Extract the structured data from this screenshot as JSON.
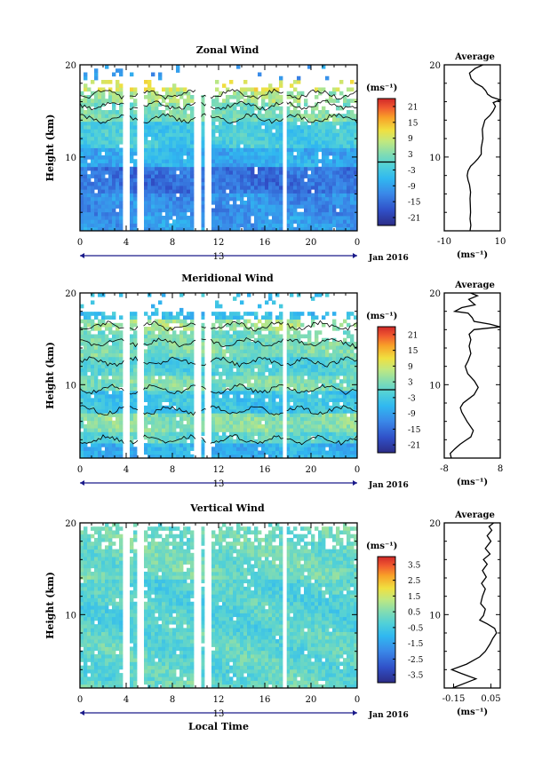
{
  "figure": {
    "date_label": "Jan 2016",
    "day_label": "13",
    "xlabel": "Local Time",
    "x_ticks": [
      "0",
      "4",
      "8",
      "12",
      "16",
      "20",
      "0"
    ]
  },
  "chart_data": [
    {
      "type": "heatmap",
      "title": "Zonal Wind",
      "ylabel": "Height (km)",
      "y_ticks": [
        "10",
        "20"
      ],
      "ylim": [
        2,
        20
      ],
      "xlim": [
        0,
        24
      ],
      "colorbar": {
        "label": "(ms⁻¹)",
        "ticks": [
          "21",
          "15",
          "9",
          "3",
          "-3",
          "-9",
          "-15",
          "-21"
        ],
        "range": [
          -24,
          24
        ],
        "contour_at": 0
      },
      "gaps": [
        [
          3.8,
          4.3
        ],
        [
          5.0,
          5.5
        ],
        [
          10.0,
          10.5
        ],
        [
          10.9,
          11.3
        ],
        [
          17.6,
          17.9
        ]
      ],
      "profile": {
        "title": "Average",
        "ticks": [
          "-10",
          "10"
        ],
        "xlim": [
          -10,
          10
        ],
        "xlabel": "(ms⁻¹)",
        "y_ticks": [
          "10",
          "20"
        ],
        "points": [
          [
            -0.8,
            2.0
          ],
          [
            -0.5,
            2.6
          ],
          [
            -0.8,
            3.3
          ],
          [
            -0.6,
            4.0
          ],
          [
            -0.7,
            4.8
          ],
          [
            -0.8,
            5.5
          ],
          [
            -0.6,
            6.2
          ],
          [
            -1.0,
            7.0
          ],
          [
            -1.5,
            7.5
          ],
          [
            -1.8,
            8.0
          ],
          [
            -1.5,
            8.5
          ],
          [
            -0.6,
            9.0
          ],
          [
            0.8,
            9.4
          ],
          [
            2.0,
            9.8
          ],
          [
            3.2,
            10.3
          ],
          [
            3.2,
            11.0
          ],
          [
            3.8,
            12.0
          ],
          [
            3.6,
            13.0
          ],
          [
            4.5,
            14.0
          ],
          [
            6.3,
            14.5
          ],
          [
            7.5,
            15.0
          ],
          [
            8.3,
            15.5
          ],
          [
            7.5,
            15.9
          ],
          [
            10.0,
            16.2
          ],
          [
            7.0,
            16.5
          ],
          [
            5.5,
            16.8
          ],
          [
            4.8,
            17.2
          ],
          [
            3.6,
            17.6
          ],
          [
            1.2,
            18.0
          ],
          [
            -0.4,
            18.5
          ],
          [
            -1.0,
            19.1
          ],
          [
            1.0,
            19.6
          ],
          [
            3.8,
            20.0
          ]
        ]
      }
    },
    {
      "type": "heatmap",
      "title": "Meridional Wind",
      "ylabel": "Height (km)",
      "y_ticks": [
        "10",
        "20"
      ],
      "ylim": [
        2,
        20
      ],
      "xlim": [
        0,
        24
      ],
      "colorbar": {
        "label": "(ms⁻¹)",
        "ticks": [
          "21",
          "15",
          "9",
          "3",
          "-3",
          "-9",
          "-15",
          "-21"
        ],
        "range": [
          -24,
          24
        ],
        "contour_at": 0
      },
      "gaps": [
        [
          3.8,
          4.3
        ],
        [
          5.0,
          5.5
        ],
        [
          10.0,
          10.5
        ],
        [
          10.9,
          11.3
        ],
        [
          17.6,
          17.9
        ]
      ],
      "profile": {
        "title": "Average",
        "ticks": [
          "-8",
          "8"
        ],
        "xlim": [
          -8,
          8
        ],
        "xlabel": "(ms⁻¹)",
        "y_ticks": [
          "10",
          "20"
        ],
        "points": [
          [
            -6.0,
            2.0
          ],
          [
            -6.3,
            2.5
          ],
          [
            -5.0,
            3.0
          ],
          [
            -3.5,
            3.5
          ],
          [
            -2.0,
            3.9
          ],
          [
            -0.4,
            4.3
          ],
          [
            0.3,
            5.0
          ],
          [
            -1.5,
            6.0
          ],
          [
            -3.0,
            7.0
          ],
          [
            -3.4,
            7.5
          ],
          [
            -2.6,
            8.0
          ],
          [
            0.5,
            8.9
          ],
          [
            1.7,
            9.7
          ],
          [
            0.6,
            10.4
          ],
          [
            -1.3,
            11.2
          ],
          [
            -2.0,
            12.0
          ],
          [
            -1.2,
            12.6
          ],
          [
            -0.4,
            13.4
          ],
          [
            -0.9,
            14.2
          ],
          [
            -0.4,
            14.9
          ],
          [
            -0.9,
            15.5
          ],
          [
            0.5,
            16.0
          ],
          [
            8.0,
            16.3
          ],
          [
            5.0,
            16.6
          ],
          [
            0.5,
            16.9
          ],
          [
            0.0,
            17.3
          ],
          [
            -1.2,
            17.8
          ],
          [
            -5.0,
            18.0
          ],
          [
            -3.0,
            18.4
          ],
          [
            0.8,
            18.7
          ],
          [
            -1.0,
            19.3
          ],
          [
            1.5,
            19.7
          ],
          [
            -0.5,
            20.0
          ]
        ]
      }
    },
    {
      "type": "heatmap",
      "title": "Vertical Wind",
      "ylabel": "Height (km)",
      "y_ticks": [
        "10",
        "20"
      ],
      "ylim": [
        2,
        20
      ],
      "xlim": [
        0,
        24
      ],
      "colorbar": {
        "label": "(ms⁻¹)",
        "ticks": [
          "3.5",
          "2.5",
          "1.5",
          "0.5",
          "-0.5",
          "-1.5",
          "-2.5",
          "-3.5"
        ],
        "range": [
          -4,
          4
        ],
        "contour_at": null
      },
      "gaps": [
        [
          3.8,
          4.3
        ],
        [
          5.0,
          5.5
        ],
        [
          10.0,
          10.5
        ],
        [
          10.9,
          11.3
        ],
        [
          17.6,
          17.9
        ]
      ],
      "profile": {
        "title": "Average",
        "ticks": [
          "-0.15",
          "0.05"
        ],
        "xlim": [
          -0.2,
          0.1
        ],
        "xlabel": "(ms⁻¹)",
        "y_ticks": [
          "10",
          "20"
        ],
        "points": [
          [
            -0.155,
            2.0
          ],
          [
            -0.08,
            2.6
          ],
          [
            -0.03,
            3.0
          ],
          [
            -0.11,
            3.6
          ],
          [
            -0.16,
            4.0
          ],
          [
            -0.08,
            4.6
          ],
          [
            -0.01,
            5.4
          ],
          [
            0.02,
            6.0
          ],
          [
            0.045,
            6.8
          ],
          [
            0.06,
            7.4
          ],
          [
            0.08,
            8.0
          ],
          [
            0.07,
            8.5
          ],
          [
            0.03,
            9.0
          ],
          [
            -0.01,
            9.4
          ],
          [
            0.01,
            9.9
          ],
          [
            0.02,
            10.6
          ],
          [
            -0.005,
            11.2
          ],
          [
            0.005,
            12.0
          ],
          [
            0.02,
            12.8
          ],
          [
            0.0,
            13.4
          ],
          [
            0.025,
            14.1
          ],
          [
            0.005,
            14.8
          ],
          [
            0.03,
            15.5
          ],
          [
            0.01,
            16.0
          ],
          [
            0.045,
            16.6
          ],
          [
            0.02,
            17.2
          ],
          [
            0.05,
            18.0
          ],
          [
            0.03,
            18.6
          ],
          [
            0.055,
            19.2
          ],
          [
            0.04,
            19.6
          ],
          [
            0.065,
            20.0
          ]
        ]
      }
    }
  ]
}
